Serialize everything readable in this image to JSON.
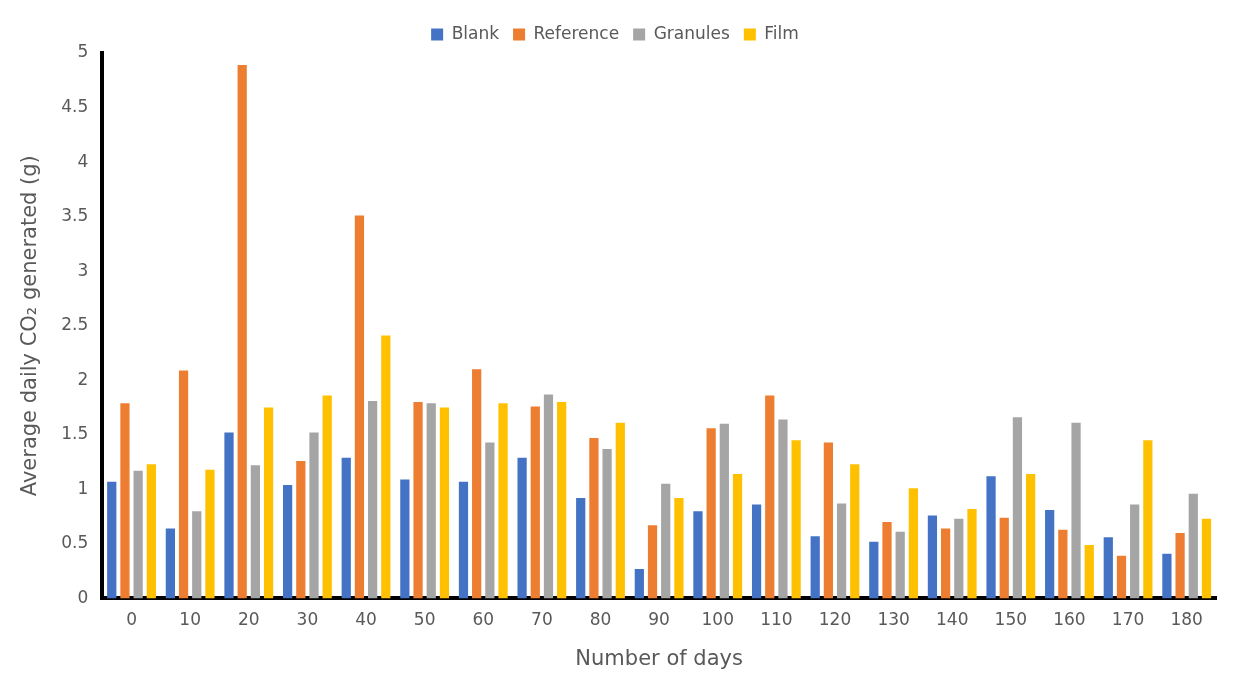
{
  "chart_data": {
    "type": "bar",
    "xlabel": "Number of days",
    "ylabel": "Average daily CO₂ generated (g)",
    "categories": [
      "0",
      "10",
      "20",
      "30",
      "40",
      "50",
      "60",
      "70",
      "80",
      "90",
      "100",
      "110",
      "120",
      "130",
      "140",
      "150",
      "160",
      "170",
      "180"
    ],
    "series": [
      {
        "name": "Blank",
        "color": "#4472c4",
        "values": [
          1.07,
          0.64,
          1.52,
          1.04,
          1.29,
          1.09,
          1.07,
          1.29,
          0.92,
          0.27,
          0.8,
          0.86,
          0.57,
          0.52,
          0.76,
          1.12,
          0.81,
          0.56,
          0.41
        ]
      },
      {
        "name": "Reference",
        "color": "#ed7d31",
        "values": [
          1.79,
          2.09,
          4.89,
          1.26,
          3.51,
          1.8,
          2.1,
          1.76,
          1.47,
          0.67,
          1.56,
          1.86,
          1.43,
          0.7,
          0.64,
          0.74,
          0.63,
          0.39,
          0.6
        ]
      },
      {
        "name": "Granules",
        "color": "#a5a5a5",
        "values": [
          1.17,
          0.8,
          1.22,
          1.52,
          1.81,
          1.79,
          1.43,
          1.87,
          1.37,
          1.05,
          1.6,
          1.64,
          0.87,
          0.61,
          0.73,
          1.66,
          1.61,
          0.86,
          0.96
        ]
      },
      {
        "name": "Film",
        "color": "#ffc000",
        "values": [
          1.23,
          1.18,
          1.75,
          1.86,
          2.41,
          1.75,
          1.79,
          1.8,
          1.61,
          0.92,
          1.14,
          1.45,
          1.23,
          1.01,
          0.82,
          1.14,
          0.49,
          1.45,
          0.73
        ]
      }
    ],
    "ylim": [
      0,
      5
    ],
    "yticks": [
      0,
      0.5,
      1,
      1.5,
      2,
      2.5,
      3,
      3.5,
      4,
      4.5,
      5
    ],
    "grid": false,
    "legend": "top"
  }
}
